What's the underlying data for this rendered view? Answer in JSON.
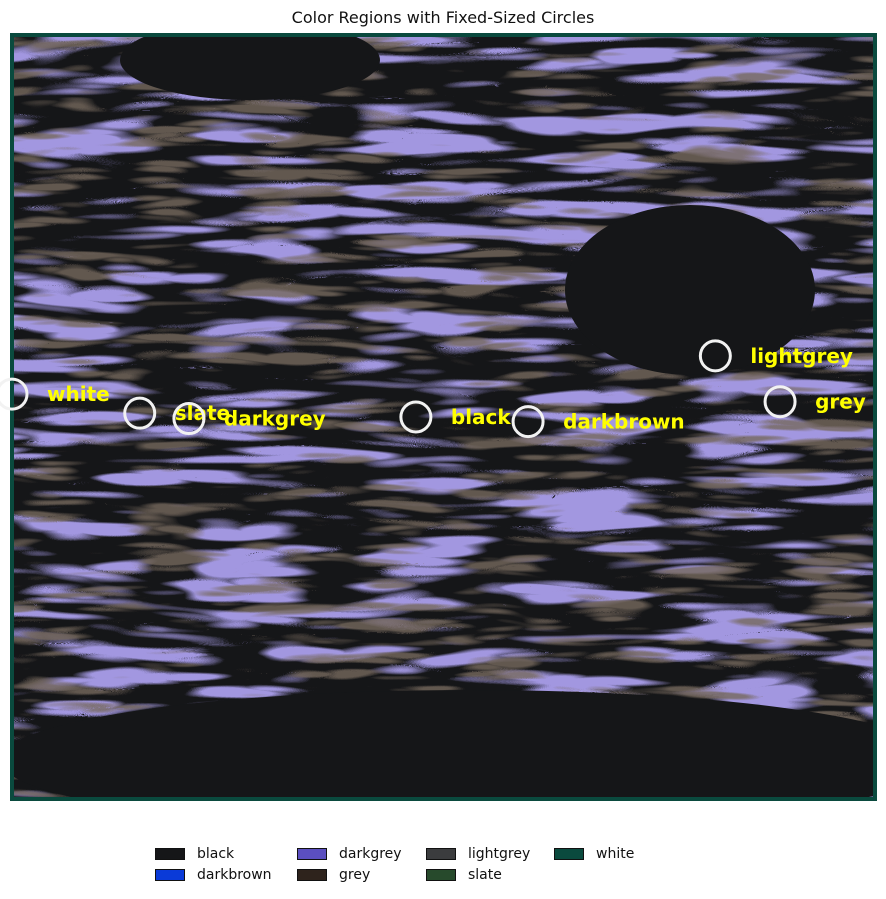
{
  "chart_data": {
    "type": "scatter",
    "title": "Color Regions with Fixed-Sized Circles",
    "xlabel": "",
    "ylabel": "",
    "grid": false,
    "axes_visible": false,
    "legend_placement": "bottom-center",
    "label_color": "#ffff00",
    "marker_color": "#f2f2f2",
    "background_color": "#151618",
    "frame_color": "#0a4a3e",
    "points": [
      {
        "label": "white",
        "x": 0.0,
        "y": 0.47
      },
      {
        "label": "slate",
        "x": 0.148,
        "y": 0.495
      },
      {
        "label": "darkgrey",
        "x": 0.205,
        "y": 0.502
      },
      {
        "label": "black",
        "x": 0.468,
        "y": 0.5
      },
      {
        "label": "darkbrown",
        "x": 0.598,
        "y": 0.506
      },
      {
        "label": "lightgrey",
        "x": 0.815,
        "y": 0.42
      },
      {
        "label": "grey",
        "x": 0.89,
        "y": 0.48
      }
    ],
    "legend": [
      {
        "label": "black",
        "color": "#151618"
      },
      {
        "label": "darkbrown",
        "color": "#0a3ad8"
      },
      {
        "label": "darkgrey",
        "color": "#5b4fc0"
      },
      {
        "label": "grey",
        "color": "#2e231c"
      },
      {
        "label": "lightgrey",
        "color": "#3b3c3e"
      },
      {
        "label": "slate",
        "color": "#274a2c"
      },
      {
        "label": "white",
        "color": "#0a4a3e"
      }
    ]
  }
}
